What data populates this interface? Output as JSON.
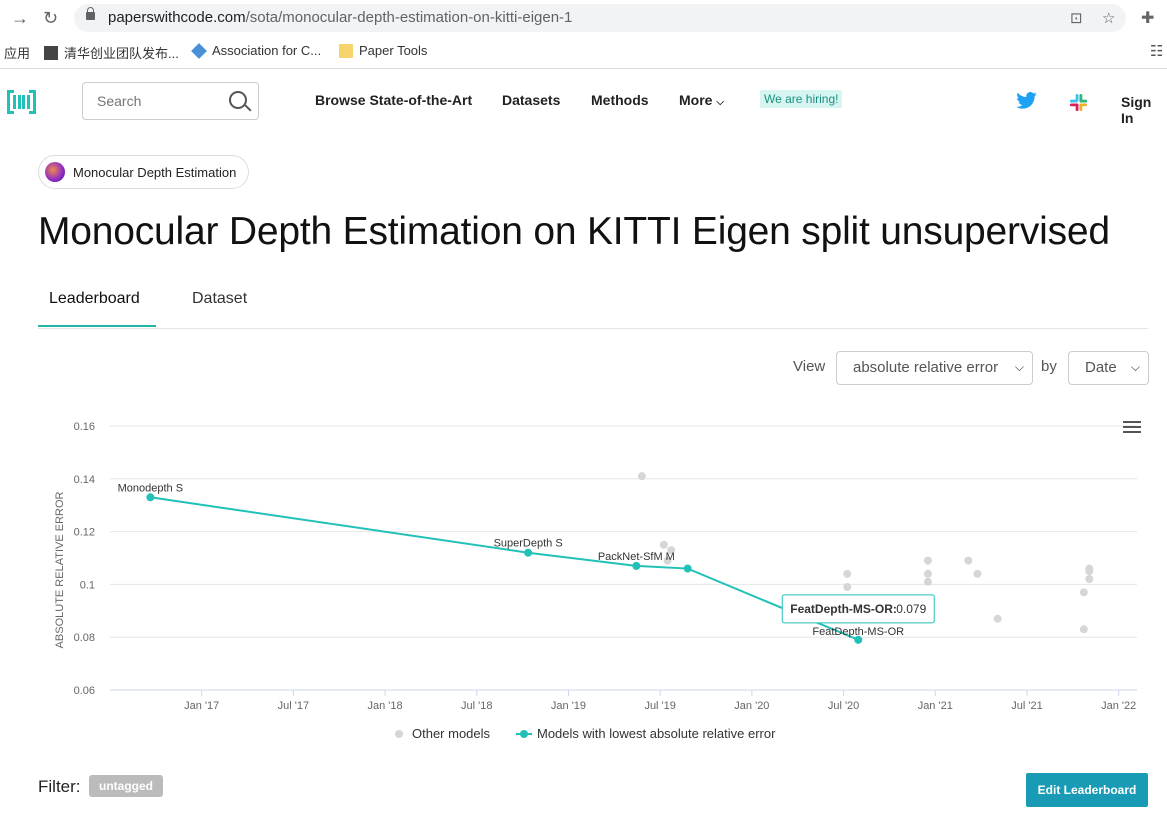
{
  "browser": {
    "url_host": "paperswithcode.com",
    "url_path": "/sota/monocular-depth-estimation-on-kitti-eigen-1",
    "bookmarks": [
      {
        "label": "应用"
      },
      {
        "label": "清华创业团队发布..."
      },
      {
        "label": "Association for C..."
      },
      {
        "label": "Paper Tools"
      }
    ]
  },
  "header": {
    "search_placeholder": "Search",
    "nav": [
      "Browse State-of-the-Art",
      "Datasets",
      "Methods",
      "More"
    ],
    "hiring": "We are hiring!",
    "signin": "Sign In"
  },
  "task_chip": "Monocular Depth Estimation",
  "title": "Monocular Depth Estimation on KITTI Eigen split unsupervised",
  "tabs": [
    "Leaderboard",
    "Dataset"
  ],
  "controls": {
    "view_label": "View",
    "view_value": "absolute relative error",
    "by_label": "by",
    "by_value": "Date"
  },
  "chart_data": {
    "type": "scatter",
    "ylabel": "ABSOLUTE RELATIVE ERROR",
    "ylim": [
      0.06,
      0.16
    ],
    "yticks": [
      0.16,
      0.14,
      0.12,
      0.1,
      0.08,
      0.06
    ],
    "ytick_labels": [
      "0.16",
      "0.14",
      "0.12",
      "0.1",
      "0.08",
      "0.06"
    ],
    "xlim": [
      2016.5,
      2022.1
    ],
    "xticks": [
      2017.0,
      2017.5,
      2018.0,
      2018.5,
      2019.0,
      2019.5,
      2020.0,
      2020.5,
      2021.0,
      2021.5,
      2022.0
    ],
    "xtick_labels": [
      "Jan '17",
      "Jul '17",
      "Jan '18",
      "Jul '18",
      "Jan '19",
      "Jul '19",
      "Jan '20",
      "Jul '20",
      "Jan '21",
      "Jul '21",
      "Jan '22"
    ],
    "grid": true,
    "legend_position": "bottom",
    "series": [
      {
        "name": "Other models",
        "color": "#d6d6d6",
        "points": [
          {
            "x": 2019.4,
            "y": 0.141
          },
          {
            "x": 2019.52,
            "y": 0.115
          },
          {
            "x": 2019.54,
            "y": 0.109
          },
          {
            "x": 2019.56,
            "y": 0.113
          },
          {
            "x": 2020.52,
            "y": 0.104
          },
          {
            "x": 2020.52,
            "y": 0.099
          },
          {
            "x": 2020.96,
            "y": 0.109
          },
          {
            "x": 2020.96,
            "y": 0.104
          },
          {
            "x": 2020.96,
            "y": 0.101
          },
          {
            "x": 2021.18,
            "y": 0.109
          },
          {
            "x": 2021.23,
            "y": 0.104
          },
          {
            "x": 2021.34,
            "y": 0.087
          },
          {
            "x": 2021.81,
            "y": 0.097
          },
          {
            "x": 2021.81,
            "y": 0.083
          },
          {
            "x": 2021.84,
            "y": 0.106
          },
          {
            "x": 2021.84,
            "y": 0.105
          },
          {
            "x": 2021.84,
            "y": 0.102
          }
        ]
      },
      {
        "name": "Models with lowest absolute relative error",
        "color": "#21c1b8",
        "points": [
          {
            "x": 2016.72,
            "y": 0.133,
            "label": "Monodepth S"
          },
          {
            "x": 2018.78,
            "y": 0.112,
            "label": "SuperDepth S"
          },
          {
            "x": 2019.37,
            "y": 0.107,
            "label": "PackNet-SfM M"
          },
          {
            "x": 2019.65,
            "y": 0.106,
            "label": ""
          },
          {
            "x": 2020.58,
            "y": 0.079,
            "label": "FeatDepth-MS-OR"
          }
        ]
      }
    ],
    "tooltip": {
      "name": "FeatDepth-MS-OR:",
      "value": "0.079"
    }
  },
  "filter_label": "Filter:",
  "filter_tag": "untagged",
  "edit_button": "Edit Leaderboard",
  "colors": {
    "accent": "#21c1b8",
    "button": "#1a9bb5"
  }
}
